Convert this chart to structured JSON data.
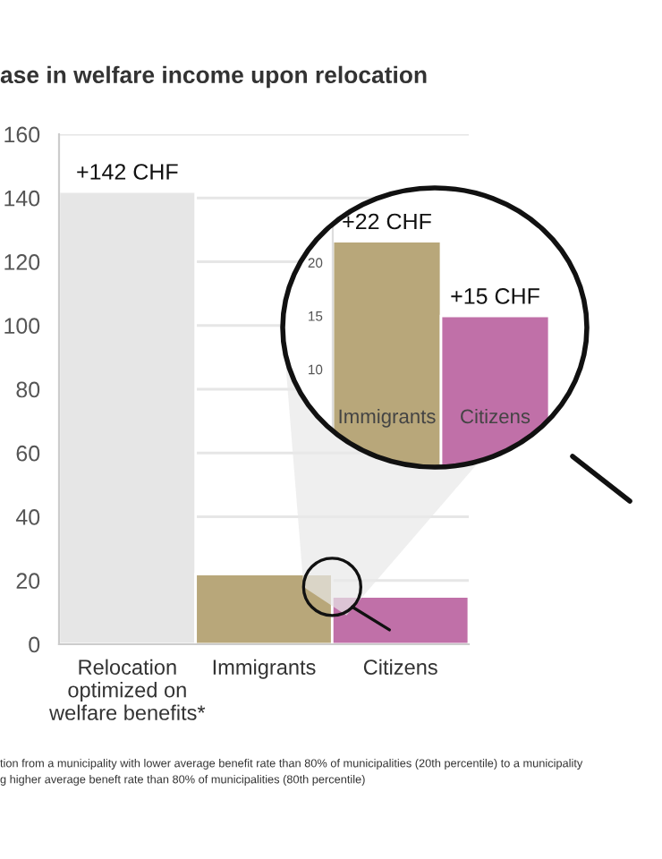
{
  "chart_data": [
    {
      "type": "bar",
      "title": "ase in welfare income upon relocation",
      "categories": [
        "Relocation\noptimized on\nwelfare benefits*",
        "Immigrants",
        "Citizens"
      ],
      "values": [
        142,
        22,
        15
      ],
      "colors": [
        "#e6e6e6",
        "#b8a77a",
        "#c070a8"
      ],
      "value_labels": [
        "+142 CHF",
        null,
        null
      ],
      "ylim": [
        0,
        160
      ],
      "yticks": [
        0,
        20,
        40,
        60,
        80,
        100,
        120,
        140,
        160
      ],
      "grid": "y",
      "annotations": [
        "tion from a municipality with lower average benefit rate than 80% of municipalities (20th percentile) to a municipality",
        "g higher average beneft rate than 80% of municipalities (80th percentile)"
      ]
    },
    {
      "type": "bar",
      "categories": [
        "Immigrants",
        "Citizens"
      ],
      "values": [
        22,
        15
      ],
      "colors": [
        "#b8a77a",
        "#c070a8"
      ],
      "value_labels": [
        "+22 CHF",
        "+15 CHF"
      ],
      "ylim": [
        1,
        27
      ],
      "yticks": [
        10,
        15,
        20
      ]
    }
  ]
}
